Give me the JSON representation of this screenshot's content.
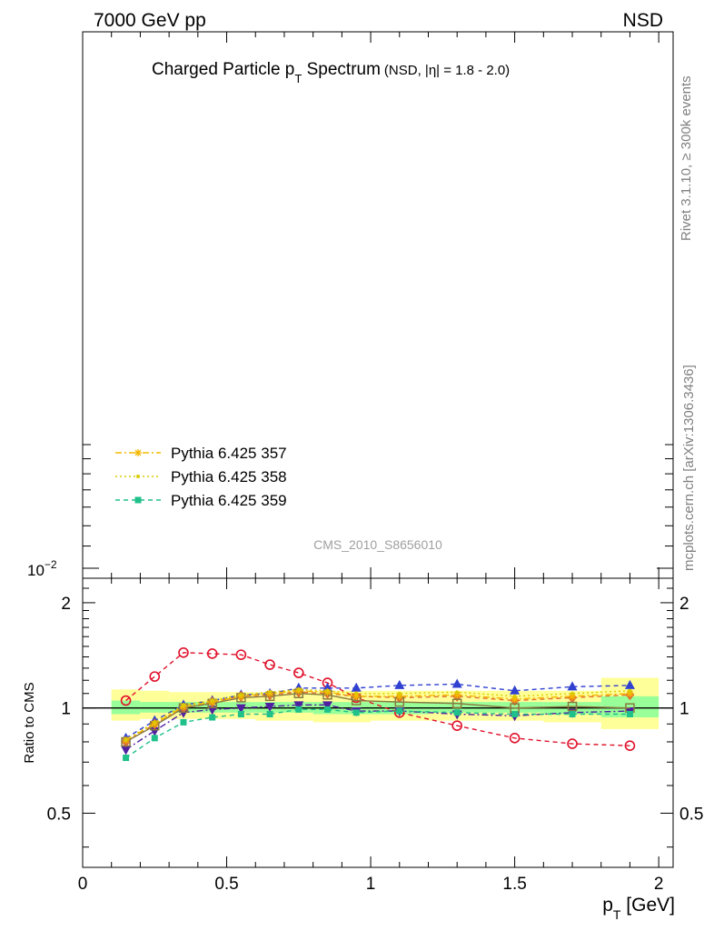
{
  "header": {
    "left": "7000 GeV pp",
    "right": "NSD"
  },
  "side_labels": {
    "rivet": "Rivet 3.1.10, ≥ 300k events",
    "mcplots": "mcplots.cern.ch [arXiv:1306.3436]"
  },
  "chart_data": [
    {
      "type": "line",
      "title_main": "Charged Particle p",
      "title_sub": "T",
      "title_main_rest": " Spectrum",
      "title_extra": "(NSD, |η| = 1.8 - 2.0)",
      "watermark": "CMS_2010_S8656010",
      "yscale": "log",
      "ytick_labels": [
        {
          "base": "10",
          "exp": "−2",
          "value": 0.01
        }
      ],
      "legend_position": "lower-left",
      "legend": [
        {
          "label": "Pythia 6.425 357",
          "color": "#f5b800",
          "style": "dash-dot",
          "marker": "star"
        },
        {
          "label": "Pythia 6.425 358",
          "color": "#d9cc00",
          "style": "dotted",
          "marker": "dot"
        },
        {
          "label": "Pythia 6.425 359",
          "color": "#20c08a",
          "style": "dashed",
          "marker": "square"
        }
      ]
    },
    {
      "type": "line",
      "ylabel": "Ratio to CMS",
      "xlabel_main": "p",
      "xlabel_sub": "T",
      "xlabel_rest": " [GeV]",
      "xlim": [
        0,
        2.05
      ],
      "ylim": [
        0.35,
        2.35
      ],
      "xticks": [
        0,
        0.5,
        1,
        1.5,
        2
      ],
      "xtick_labels": [
        "0",
        "0.5",
        "1",
        "1.5",
        "2"
      ],
      "yticks": [
        0.5,
        1,
        2
      ],
      "ytick_labels": [
        "0.5",
        "1",
        "2"
      ],
      "bins": [
        0.1,
        0.2,
        0.3,
        0.4,
        0.5,
        0.6,
        0.7,
        0.8,
        0.9,
        1.0,
        1.2,
        1.4,
        1.6,
        1.8,
        2.0
      ],
      "band_yellow_lo": [
        0.92,
        0.93,
        0.93,
        0.93,
        0.93,
        0.92,
        0.92,
        0.91,
        0.91,
        0.92,
        0.92,
        0.92,
        0.91,
        0.87
      ],
      "band_yellow_hi": [
        1.13,
        1.12,
        1.11,
        1.11,
        1.11,
        1.11,
        1.12,
        1.12,
        1.12,
        1.12,
        1.12,
        1.12,
        1.12,
        1.22
      ],
      "band_green_lo": [
        0.96,
        0.97,
        0.97,
        0.97,
        0.97,
        0.97,
        0.97,
        0.96,
        0.96,
        0.96,
        0.97,
        0.97,
        0.96,
        0.94
      ],
      "band_green_hi": [
        1.05,
        1.04,
        1.04,
        1.04,
        1.04,
        1.04,
        1.04,
        1.04,
        1.04,
        1.04,
        1.04,
        1.04,
        1.04,
        1.08
      ],
      "x": [
        0.15,
        0.25,
        0.35,
        0.45,
        0.55,
        0.65,
        0.75,
        0.85,
        0.95,
        1.1,
        1.3,
        1.5,
        1.7,
        1.9
      ],
      "series": [
        {
          "color": "#e0102a",
          "style": "dashed",
          "marker": "circle-open",
          "values": [
            1.05,
            1.23,
            1.44,
            1.43,
            1.42,
            1.33,
            1.26,
            1.18,
            1.07,
            0.97,
            0.89,
            0.82,
            0.79,
            0.78
          ]
        },
        {
          "color": "#3040d0",
          "style": "dashed",
          "marker": "triangle-up",
          "values": [
            0.82,
            0.92,
            1.02,
            1.05,
            1.09,
            1.1,
            1.14,
            1.14,
            1.14,
            1.16,
            1.17,
            1.12,
            1.15,
            1.16
          ]
        },
        {
          "color": "#5020a0",
          "style": "dash-dot",
          "marker": "triangle-down",
          "values": [
            0.76,
            0.86,
            0.97,
            0.99,
            1.0,
            1.01,
            1.02,
            1.02,
            0.98,
            0.98,
            0.96,
            0.95,
            0.97,
            0.98
          ]
        },
        {
          "color": "#e07030",
          "style": "dashed",
          "marker": "diamond",
          "values": [
            0.8,
            0.9,
            1.0,
            1.04,
            1.08,
            1.09,
            1.11,
            1.1,
            1.08,
            1.07,
            1.08,
            1.05,
            1.07,
            1.09
          ]
        },
        {
          "color": "#8a7a40",
          "style": "solid",
          "marker": "square-open",
          "values": [
            0.8,
            0.89,
            1.0,
            1.03,
            1.07,
            1.08,
            1.1,
            1.09,
            1.05,
            1.04,
            1.03,
            1.0,
            1.01,
            1.0
          ]
        },
        {
          "color": "#f5b800",
          "style": "dash-dot",
          "marker": "star",
          "values": [
            0.81,
            0.9,
            1.01,
            1.04,
            1.08,
            1.1,
            1.12,
            1.11,
            1.08,
            1.08,
            1.09,
            1.06,
            1.08,
            1.1
          ]
        },
        {
          "color": "#d9cc00",
          "style": "dotted",
          "marker": "dot",
          "values": [
            0.81,
            0.91,
            1.02,
            1.05,
            1.09,
            1.11,
            1.13,
            1.12,
            1.1,
            1.1,
            1.11,
            1.08,
            1.1,
            1.12
          ]
        },
        {
          "color": "#20c08a",
          "style": "dashed",
          "marker": "square",
          "values": [
            0.72,
            0.82,
            0.91,
            0.94,
            0.96,
            0.96,
            0.99,
            0.99,
            0.97,
            0.98,
            0.97,
            0.96,
            0.96,
            0.96
          ]
        }
      ]
    }
  ]
}
